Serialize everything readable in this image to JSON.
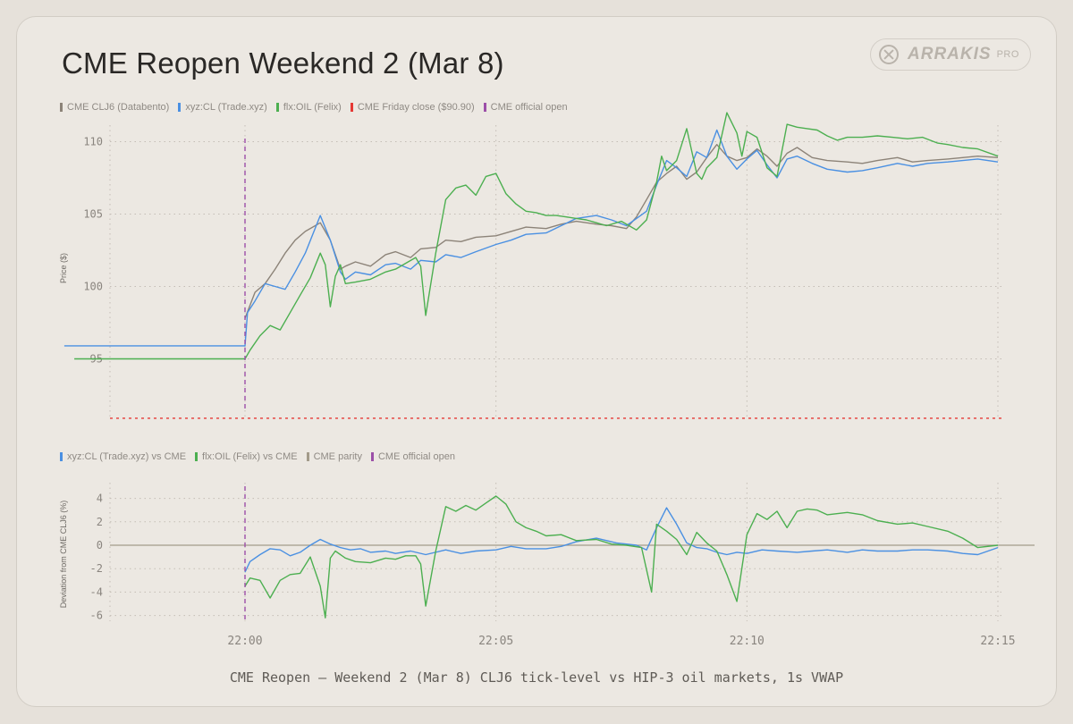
{
  "title": "CME Reopen Weekend 2 (Mar 8)",
  "logo": {
    "word": "ARRAKIS",
    "badge": "PRO",
    "icon": "arrakis-logo-icon"
  },
  "caption": "CME Reopen — Weekend 2 (Mar 8) CLJ6 tick-level vs HIP-3 oil markets, 1s VWAP",
  "colors": {
    "cme": "#8c8378",
    "xyz": "#4a90e2",
    "felix": "#4caf50",
    "close": "#e53935",
    "open": "#9c4fa8",
    "parity": "#a39b8a",
    "grid": "#c3bdb5",
    "tick": "#8a857f"
  },
  "chart_data": [
    {
      "type": "line",
      "title": "CME Reopen Weekend 2 (Mar 8)",
      "xlabel": "",
      "ylabel": "Price ($)",
      "x_ticks": [
        "22:00",
        "22:05",
        "22:10",
        "22:15"
      ],
      "y_ticks": [
        95,
        100,
        105,
        110
      ],
      "ylim": [
        90.9,
        112
      ],
      "xlim": [
        "21:58",
        "22:15"
      ],
      "grid": true,
      "legend_placement": "top-left",
      "legend": [
        {
          "label": "CME CLJ6 (Databento)",
          "color": "#8c8378"
        },
        {
          "label": "xyz:CL (Trade.xyz)",
          "color": "#4a90e2"
        },
        {
          "label": "flx:OIL (Felix)",
          "color": "#4caf50"
        },
        {
          "label": "CME Friday close ($90.90)",
          "color": "#e53935"
        },
        {
          "label": "CME official open",
          "color": "#9c4fa8"
        }
      ],
      "hlines": [
        {
          "y": 90.9,
          "color": "#e53935"
        }
      ],
      "vlines": [
        {
          "x": "22:00",
          "color": "#9c4fa8"
        }
      ],
      "series": [
        {
          "key": "cme",
          "x": [
            0,
            0.2,
            0.4,
            0.6,
            0.8,
            1,
            1.2,
            1.5,
            1.7,
            1.9,
            2,
            2.2,
            2.5,
            2.8,
            3,
            3.3,
            3.5,
            3.8,
            4,
            4.3,
            4.6,
            5,
            5.3,
            5.6,
            6,
            6.3,
            6.6,
            7,
            7.3,
            7.6,
            7.8,
            8,
            8.2,
            8.4,
            8.6,
            8.8,
            9,
            9.2,
            9.4,
            9.6,
            9.8,
            10,
            10.2,
            10.4,
            10.6,
            10.8,
            11,
            11.3,
            11.6,
            12,
            12.3,
            12.6,
            13,
            13.3,
            13.6,
            14,
            14.3,
            14.6,
            15
          ],
          "y": [
            97.8,
            99.6,
            100.2,
            101.2,
            102.3,
            103.2,
            103.8,
            104.4,
            103.2,
            101.2,
            101.4,
            101.7,
            101.4,
            102.2,
            102.4,
            102.0,
            102.6,
            102.7,
            103.2,
            103.1,
            103.4,
            103.5,
            103.8,
            104.1,
            104.0,
            104.3,
            104.5,
            104.3,
            104.2,
            104.0,
            104.8,
            106.0,
            107.2,
            107.8,
            108.3,
            107.4,
            107.9,
            108.9,
            109.8,
            109.0,
            108.7,
            108.9,
            109.5,
            109.0,
            108.3,
            109.2,
            109.6,
            108.9,
            108.7,
            108.6,
            108.5,
            108.7,
            108.9,
            108.6,
            108.7,
            108.8,
            108.9,
            109.0,
            108.9
          ]
        },
        {
          "key": "xyz",
          "x": [
            -3.6,
            -2,
            -1,
            0,
            0.05,
            0.2,
            0.4,
            0.6,
            0.8,
            1,
            1.2,
            1.5,
            1.7,
            1.9,
            2,
            2.2,
            2.5,
            2.8,
            3,
            3.3,
            3.5,
            3.8,
            4,
            4.3,
            4.6,
            5,
            5.3,
            5.6,
            6,
            6.3,
            6.6,
            7,
            7.3,
            7.6,
            7.8,
            8,
            8.2,
            8.4,
            8.6,
            8.8,
            9,
            9.2,
            9.4,
            9.6,
            9.8,
            10,
            10.2,
            10.4,
            10.6,
            10.8,
            11,
            11.3,
            11.6,
            12,
            12.3,
            12.6,
            13,
            13.3,
            13.6,
            14,
            14.3,
            14.6,
            15
          ],
          "y": [
            95.9,
            95.9,
            95.9,
            95.9,
            98.2,
            99.0,
            100.2,
            100.0,
            99.8,
            101.0,
            102.3,
            104.9,
            103.2,
            101.0,
            100.5,
            101.0,
            100.8,
            101.5,
            101.6,
            101.2,
            101.8,
            101.7,
            102.2,
            102.0,
            102.4,
            102.9,
            103.2,
            103.6,
            103.7,
            104.2,
            104.7,
            104.9,
            104.6,
            104.2,
            104.7,
            105.2,
            107.0,
            108.7,
            108.2,
            107.6,
            109.3,
            108.9,
            110.8,
            109.0,
            108.1,
            108.8,
            109.4,
            108.4,
            107.5,
            108.8,
            109.0,
            108.5,
            108.1,
            107.9,
            108.0,
            108.2,
            108.5,
            108.3,
            108.5,
            108.6,
            108.7,
            108.8,
            108.6
          ]
        },
        {
          "key": "felix",
          "x": [
            -3.4,
            -2,
            -1,
            0,
            0.1,
            0.3,
            0.5,
            0.7,
            0.9,
            1.1,
            1.3,
            1.5,
            1.6,
            1.7,
            1.8,
            1.9,
            2,
            2.2,
            2.5,
            2.8,
            3,
            3.2,
            3.4,
            3.5,
            3.6,
            3.8,
            4,
            4.2,
            4.4,
            4.6,
            4.8,
            5,
            5.2,
            5.4,
            5.6,
            5.8,
            6,
            6.2,
            6.4,
            6.6,
            6.8,
            7,
            7.2,
            7.5,
            7.8,
            8,
            8.2,
            8.3,
            8.4,
            8.6,
            8.8,
            9,
            9.1,
            9.2,
            9.4,
            9.6,
            9.8,
            9.9,
            10,
            10.2,
            10.4,
            10.6,
            10.8,
            11,
            11.2,
            11.4,
            11.6,
            11.8,
            12,
            12.3,
            12.6,
            12.9,
            13.2,
            13.5,
            13.8,
            14,
            14.3,
            14.6,
            15
          ],
          "y": [
            95.0,
            95.0,
            95.0,
            95.0,
            95.6,
            96.6,
            97.3,
            97.0,
            98.2,
            99.4,
            100.6,
            102.3,
            101.5,
            98.6,
            100.7,
            101.5,
            100.2,
            100.3,
            100.5,
            101.0,
            101.2,
            101.6,
            102.0,
            101.4,
            98.0,
            102.3,
            106.0,
            106.8,
            107.0,
            106.3,
            107.6,
            107.8,
            106.4,
            105.7,
            105.2,
            105.1,
            104.9,
            104.9,
            104.8,
            104.7,
            104.6,
            104.4,
            104.2,
            104.5,
            103.9,
            104.6,
            107.2,
            109.0,
            108.0,
            108.7,
            110.9,
            107.8,
            107.4,
            108.2,
            108.9,
            112.0,
            110.6,
            109.0,
            110.7,
            110.3,
            108.2,
            107.6,
            111.2,
            111.0,
            110.9,
            110.8,
            110.4,
            110.1,
            110.3,
            110.3,
            110.4,
            110.3,
            110.2,
            110.3,
            109.9,
            109.8,
            109.6,
            109.5,
            109.0
          ]
        }
      ]
    },
    {
      "type": "line",
      "ylabel": "Deviation from CME CLJ6 (%)",
      "x_ticks": [
        "22:00",
        "22:05",
        "22:10",
        "22:15"
      ],
      "y_ticks": [
        -6,
        -4,
        -2,
        0,
        2,
        4
      ],
      "ylim": [
        -6.5,
        5
      ],
      "xlim": [
        "21:58",
        "22:15"
      ],
      "grid": true,
      "legend_placement": "top-left",
      "legend": [
        {
          "label": "xyz:CL (Trade.xyz) vs CME",
          "color": "#4a90e2"
        },
        {
          "label": "flx:OIL (Felix) vs CME",
          "color": "#4caf50"
        },
        {
          "label": "CME parity",
          "color": "#a39b8a"
        },
        {
          "label": "CME official open",
          "color": "#9c4fa8"
        }
      ],
      "hlines": [
        {
          "y": 0,
          "color": "#a39b8a"
        }
      ],
      "vlines": [
        {
          "x": "22:00",
          "color": "#9c4fa8"
        }
      ],
      "series": [
        {
          "key": "xyz",
          "x": [
            0,
            0.1,
            0.3,
            0.5,
            0.7,
            0.9,
            1.1,
            1.3,
            1.5,
            1.7,
            1.9,
            2.1,
            2.3,
            2.5,
            2.8,
            3.0,
            3.3,
            3.6,
            4.0,
            4.3,
            4.6,
            5.0,
            5.3,
            5.6,
            6.0,
            6.3,
            6.6,
            7.0,
            7.4,
            7.8,
            8.0,
            8.2,
            8.4,
            8.6,
            8.8,
            9.0,
            9.2,
            9.4,
            9.6,
            9.8,
            10.0,
            10.3,
            10.6,
            11.0,
            11.3,
            11.6,
            12.0,
            12.3,
            12.6,
            13.0,
            13.3,
            13.6,
            14.0,
            14.3,
            14.6,
            15
          ],
          "y": [
            -2.3,
            -1.4,
            -0.8,
            -0.3,
            -0.4,
            -0.9,
            -0.6,
            0.0,
            0.5,
            0.1,
            -0.2,
            -0.4,
            -0.3,
            -0.6,
            -0.5,
            -0.7,
            -0.5,
            -0.8,
            -0.4,
            -0.7,
            -0.5,
            -0.4,
            -0.1,
            -0.3,
            -0.3,
            -0.1,
            0.3,
            0.6,
            0.2,
            0.0,
            -0.4,
            1.5,
            3.2,
            1.8,
            0.2,
            -0.2,
            -0.3,
            -0.6,
            -0.8,
            -0.6,
            -0.7,
            -0.4,
            -0.5,
            -0.6,
            -0.5,
            -0.4,
            -0.6,
            -0.4,
            -0.5,
            -0.5,
            -0.4,
            -0.4,
            -0.5,
            -0.7,
            -0.8,
            -0.2
          ]
        },
        {
          "key": "felix",
          "x": [
            0,
            0.1,
            0.3,
            0.5,
            0.7,
            0.9,
            1.1,
            1.3,
            1.5,
            1.6,
            1.7,
            1.8,
            2.0,
            2.2,
            2.5,
            2.8,
            3.0,
            3.2,
            3.4,
            3.5,
            3.6,
            3.8,
            4.0,
            4.2,
            4.4,
            4.6,
            4.8,
            5.0,
            5.2,
            5.4,
            5.6,
            5.8,
            6.0,
            6.3,
            6.6,
            7.0,
            7.3,
            7.6,
            7.9,
            8.1,
            8.2,
            8.4,
            8.6,
            8.8,
            9.0,
            9.2,
            9.4,
            9.6,
            9.8,
            10.0,
            10.2,
            10.4,
            10.6,
            10.8,
            11.0,
            11.2,
            11.4,
            11.6,
            12.0,
            12.3,
            12.6,
            13.0,
            13.3,
            13.6,
            14.0,
            14.3,
            14.6,
            15
          ],
          "y": [
            -3.5,
            -2.8,
            -3.0,
            -4.5,
            -3.0,
            -2.5,
            -2.4,
            -1.0,
            -3.5,
            -6.2,
            -1.1,
            -0.5,
            -1.1,
            -1.4,
            -1.5,
            -1.1,
            -1.2,
            -0.9,
            -0.9,
            -1.6,
            -5.2,
            -0.5,
            3.3,
            2.9,
            3.4,
            3.0,
            3.6,
            4.2,
            3.5,
            2.0,
            1.5,
            1.2,
            0.8,
            0.9,
            0.4,
            0.5,
            0.1,
            0.0,
            -0.2,
            -4.0,
            1.8,
            1.2,
            0.5,
            -0.8,
            1.1,
            0.2,
            -0.5,
            -2.5,
            -4.8,
            0.9,
            2.7,
            2.2,
            2.9,
            1.5,
            2.9,
            3.1,
            3.0,
            2.6,
            2.8,
            2.6,
            2.1,
            1.8,
            1.9,
            1.6,
            1.2,
            0.6,
            -0.2,
            0.0
          ]
        }
      ]
    }
  ]
}
